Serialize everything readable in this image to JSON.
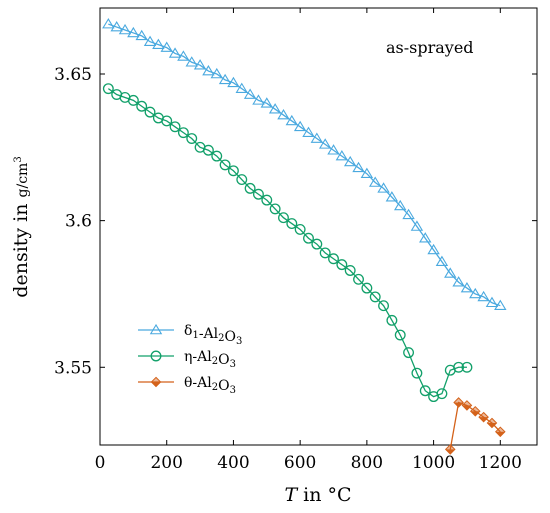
{
  "chart_data": {
    "type": "line",
    "xlabel": "T in °C",
    "ylabel": "density in g/cm³",
    "xlim": [
      0,
      1310
    ],
    "ylim": [
      3.5235,
      3.6725
    ],
    "x_ticks": [
      "0",
      "200",
      "400",
      "600",
      "800",
      "1000",
      "1200"
    ],
    "y_ticks": [
      "3.55",
      "3.6",
      "3.65"
    ],
    "annotation": "as-sprayed",
    "legend_position": "lower-left",
    "grid": false,
    "series": [
      {
        "name": "δ1-Al2O3",
        "color": "#4aa9df",
        "marker": "triangle",
        "x": [
          25,
          50,
          75,
          100,
          125,
          150,
          175,
          200,
          225,
          250,
          275,
          300,
          325,
          350,
          375,
          400,
          425,
          450,
          475,
          500,
          525,
          550,
          575,
          600,
          625,
          650,
          675,
          700,
          725,
          750,
          775,
          800,
          825,
          850,
          875,
          900,
          925,
          950,
          975,
          1000,
          1025,
          1050,
          1075,
          1100,
          1125,
          1150,
          1175,
          1200
        ],
        "y": [
          3.667,
          3.666,
          3.665,
          3.664,
          3.663,
          3.661,
          3.66,
          3.659,
          3.657,
          3.656,
          3.654,
          3.653,
          3.651,
          3.65,
          3.648,
          3.647,
          3.645,
          3.643,
          3.641,
          3.64,
          3.638,
          3.636,
          3.634,
          3.632,
          3.63,
          3.628,
          3.626,
          3.624,
          3.622,
          3.62,
          3.618,
          3.616,
          3.613,
          3.611,
          3.608,
          3.605,
          3.602,
          3.598,
          3.594,
          3.59,
          3.586,
          3.582,
          3.579,
          3.577,
          3.575,
          3.574,
          3.572,
          3.571
        ]
      },
      {
        "name": "η-Al2O3",
        "color": "#12a06a",
        "marker": "circle",
        "x": [
          25,
          50,
          75,
          100,
          125,
          150,
          175,
          200,
          225,
          250,
          275,
          300,
          325,
          350,
          375,
          400,
          425,
          450,
          475,
          500,
          525,
          550,
          575,
          600,
          625,
          650,
          675,
          700,
          725,
          750,
          775,
          800,
          825,
          850,
          875,
          900,
          925,
          950,
          975,
          1000,
          1025,
          1050,
          1075,
          1100
        ],
        "y": [
          3.645,
          3.643,
          3.642,
          3.641,
          3.639,
          3.637,
          3.635,
          3.634,
          3.632,
          3.63,
          3.628,
          3.625,
          3.624,
          3.622,
          3.619,
          3.617,
          3.614,
          3.611,
          3.609,
          3.607,
          3.604,
          3.601,
          3.599,
          3.597,
          3.594,
          3.592,
          3.589,
          3.587,
          3.585,
          3.583,
          3.58,
          3.577,
          3.574,
          3.571,
          3.566,
          3.561,
          3.555,
          3.548,
          3.542,
          3.54,
          3.541,
          3.549,
          3.55,
          3.55
        ]
      },
      {
        "name": "θ-Al2O3",
        "color": "#d4621a",
        "marker": "diamond",
        "x": [
          1050,
          1075,
          1100,
          1125,
          1150,
          1175,
          1200
        ],
        "y": [
          3.522,
          3.538,
          3.537,
          3.535,
          3.533,
          3.531,
          3.528
        ]
      }
    ]
  }
}
